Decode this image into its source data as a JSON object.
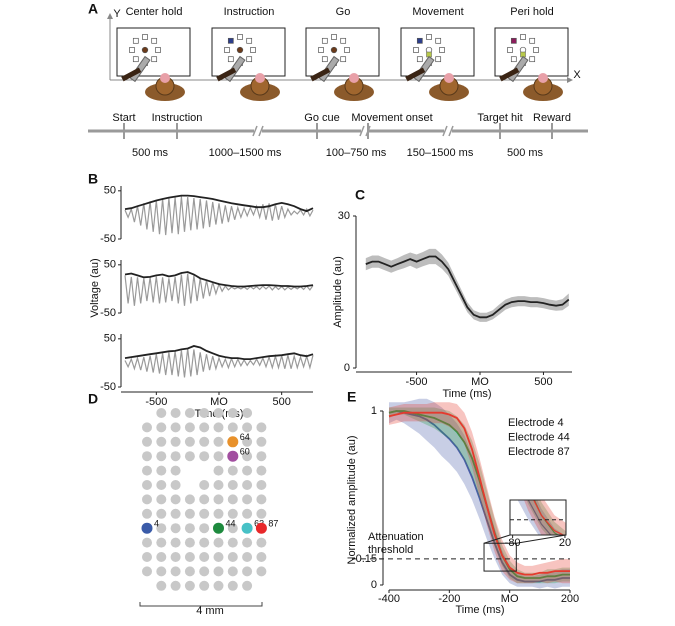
{
  "panel_a": {
    "label": "A",
    "axis_x": "X",
    "axis_y": "Y",
    "epochs": [
      "Center hold",
      "Instruction",
      "Go",
      "Movement",
      "Peri hold"
    ],
    "timeline": {
      "events": [
        "Start",
        "Instruction",
        "Go cue",
        "Movement onset",
        "Target hit",
        "Reward"
      ],
      "durations": [
        "500 ms",
        "1000–1500 ms",
        "100–750 ms",
        "150–1500 ms",
        "500 ms"
      ]
    }
  },
  "chart_data": [
    {
      "type": "line",
      "label": "B",
      "x_label": "Time (ms)",
      "y_label": "Voltage (au)",
      "xlim": [
        -750,
        750
      ],
      "xticks": [
        -500,
        {
          "value": 0,
          "label": "MO"
        },
        500
      ],
      "ylim": [
        -50,
        60
      ],
      "yticks": [
        -50,
        50
      ],
      "raw_color": "#9a9a9a",
      "envelope_color": "#222222",
      "x_raw": [
        -750,
        -725,
        -700,
        -675,
        -650,
        -625,
        -600,
        -575,
        -550,
        -525,
        -500,
        -475,
        -450,
        -425,
        -400,
        -375,
        -350,
        -325,
        -300,
        -275,
        -250,
        -225,
        -200,
        -175,
        -150,
        -125,
        -100,
        -75,
        -50,
        -25,
        0,
        25,
        50,
        75,
        100,
        125,
        150,
        175,
        200,
        225,
        250,
        275,
        300,
        325,
        350,
        375,
        400,
        425,
        450,
        475,
        500,
        525,
        550,
        575,
        600,
        625,
        650,
        675,
        700,
        725,
        750
      ],
      "x_envelope": [
        -750,
        -700,
        -650,
        -600,
        -550,
        -500,
        -450,
        -400,
        -350,
        -300,
        -250,
        -200,
        -150,
        -100,
        -50,
        0,
        50,
        100,
        150,
        200,
        250,
        300,
        350,
        400,
        450,
        500,
        550,
        600,
        650,
        700,
        750
      ],
      "subplots": [
        {
          "raw": [
            10,
            -5,
            12,
            -15,
            18,
            -22,
            24,
            -30,
            28,
            -35,
            30,
            -40,
            33,
            -42,
            35,
            -38,
            36,
            -40,
            38,
            -35,
            37,
            -32,
            35,
            -30,
            33,
            -28,
            30,
            -25,
            27,
            -20,
            24,
            -18,
            20,
            -15,
            18,
            -10,
            15,
            -5,
            14,
            -2,
            15,
            0,
            18,
            -5,
            22,
            -10,
            24,
            -12,
            22,
            -10,
            18,
            -5,
            12,
            0,
            8,
            2,
            10,
            0,
            12,
            -2,
            10
          ],
          "envelope": [
            12,
            14,
            18,
            22,
            26,
            30,
            33,
            36,
            38,
            40,
            40,
            39,
            37,
            35,
            33,
            30,
            27,
            24,
            22,
            20,
            18,
            16,
            16,
            18,
            22,
            25,
            22,
            18,
            12,
            8,
            14
          ]
        },
        {
          "raw": [
            28,
            -30,
            25,
            -35,
            24,
            -30,
            22,
            -25,
            24,
            -28,
            26,
            -30,
            24,
            -28,
            22,
            -25,
            25,
            -30,
            30,
            -35,
            32,
            -30,
            28,
            -25,
            22,
            -20,
            18,
            -15,
            14,
            -10,
            10,
            -5,
            6,
            -2,
            4,
            0,
            3,
            0,
            4,
            -1,
            5,
            0,
            5,
            -1,
            6,
            0,
            6,
            -2,
            5,
            -1,
            5,
            -2,
            4,
            -1,
            4,
            0,
            5,
            -1,
            6,
            -2,
            7
          ],
          "envelope": [
            30,
            32,
            28,
            24,
            25,
            28,
            30,
            26,
            28,
            33,
            35,
            30,
            22,
            18,
            14,
            10,
            8,
            6,
            5,
            5,
            6,
            7,
            8,
            8,
            7,
            6,
            6,
            5,
            5,
            6,
            8
          ]
        },
        {
          "raw": [
            5,
            -8,
            8,
            -12,
            10,
            -15,
            12,
            -18,
            15,
            -20,
            18,
            -22,
            20,
            -25,
            22,
            -25,
            24,
            -28,
            26,
            -30,
            30,
            -28,
            28,
            -25,
            22,
            -18,
            18,
            -15,
            14,
            -12,
            10,
            -8,
            8,
            -10,
            9,
            -8,
            8,
            -6,
            6,
            -5,
            5,
            -4,
            8,
            -5,
            10,
            -8,
            12,
            -10,
            14,
            -10,
            15,
            -12,
            16,
            -12,
            14,
            -10,
            12,
            -8,
            14,
            -10,
            16
          ],
          "envelope": [
            10,
            12,
            14,
            16,
            18,
            20,
            22,
            24,
            25,
            28,
            30,
            35,
            32,
            25,
            20,
            15,
            12,
            10,
            10,
            8,
            8,
            10,
            12,
            14,
            15,
            16,
            18,
            20,
            16,
            14,
            18
          ]
        }
      ]
    },
    {
      "type": "line",
      "label": "C",
      "x_label": "Time (ms)",
      "y_label": "Amplitude (au)",
      "xlim": [
        -930,
        725
      ],
      "xticks": [
        -500,
        {
          "value": 0,
          "label": "MO"
        },
        500
      ],
      "ylim": [
        0,
        30
      ],
      "yticks": [
        0,
        30
      ],
      "x": [
        -900,
        -850,
        -800,
        -750,
        -700,
        -650,
        -600,
        -550,
        -500,
        -450,
        -400,
        -350,
        -300,
        -250,
        -200,
        -150,
        -100,
        -50,
        0,
        50,
        100,
        150,
        200,
        250,
        300,
        350,
        400,
        450,
        500,
        550,
        600,
        650,
        700
      ],
      "series": [
        {
          "color": "#222222",
          "band_color": "#bdbdbd",
          "values": [
            20.5,
            21,
            21,
            20.5,
            20,
            20.5,
            21,
            21.5,
            21,
            21.5,
            22,
            22,
            21,
            19.5,
            17,
            14.5,
            12,
            10.5,
            10,
            10,
            10.5,
            11.5,
            12.5,
            13,
            13.2,
            13.2,
            13,
            13,
            12.8,
            12.5,
            12.3,
            12.5,
            13.5
          ],
          "error": [
            1.2,
            1.2,
            1.2,
            1.2,
            1.2,
            1.2,
            1.3,
            1.3,
            1.4,
            1.4,
            1.5,
            1.5,
            1.4,
            1.3,
            1.2,
            1.1,
            1,
            0.9,
            0.9,
            0.9,
            0.9,
            1,
            1,
            1,
            1,
            1,
            1,
            1,
            1,
            1,
            1,
            1.1,
            1.2
          ]
        }
      ]
    },
    {
      "type": "line",
      "label": "E",
      "x_label": "Time (ms)",
      "y_label": "Normalized amplitude (au)",
      "xlim": [
        -400,
        200
      ],
      "xticks": [
        -400,
        -200,
        {
          "value": 0,
          "label": "MO"
        },
        200
      ],
      "ylim": [
        0,
        1
      ],
      "yticks": [
        0,
        0.15,
        1
      ],
      "threshold": 0.15,
      "threshold_label": [
        "Attenuation",
        "threshold"
      ],
      "x": [
        -400,
        -375,
        -350,
        -325,
        -300,
        -275,
        -250,
        -225,
        -200,
        -175,
        -150,
        -125,
        -100,
        -75,
        -50,
        -25,
        0,
        25,
        50,
        75,
        100,
        125,
        150,
        175,
        200
      ],
      "series": [
        {
          "name": "Electrode 4",
          "color": "#4a5ca8",
          "values": [
            0.99,
            1.0,
            0.99,
            0.98,
            0.97,
            0.95,
            0.92,
            0.88,
            0.84,
            0.79,
            0.72,
            0.62,
            0.5,
            0.37,
            0.24,
            0.13,
            0.06,
            0.03,
            0.02,
            0.02,
            0.02,
            0.03,
            0.03,
            0.04,
            0.04
          ],
          "error": [
            0.06,
            0.05,
            0.06,
            0.08,
            0.1,
            0.12,
            0.13,
            0.14,
            0.14,
            0.14,
            0.14,
            0.13,
            0.12,
            0.11,
            0.09,
            0.07,
            0.05,
            0.04,
            0.03,
            0.03,
            0.04,
            0.04,
            0.05,
            0.05,
            0.05
          ]
        },
        {
          "name": "Electrode 44",
          "color": "#2a9a48",
          "values": [
            0.99,
            1.0,
            1.0,
            0.99,
            0.98,
            0.97,
            0.96,
            0.94,
            0.92,
            0.88,
            0.82,
            0.73,
            0.6,
            0.45,
            0.3,
            0.17,
            0.09,
            0.05,
            0.04,
            0.04,
            0.04,
            0.05,
            0.05,
            0.06,
            0.06
          ],
          "error": [
            0.03,
            0.02,
            0.02,
            0.03,
            0.04,
            0.05,
            0.06,
            0.07,
            0.08,
            0.09,
            0.1,
            0.1,
            0.1,
            0.09,
            0.08,
            0.06,
            0.05,
            0.04,
            0.03,
            0.03,
            0.03,
            0.04,
            0.04,
            0.04,
            0.04
          ]
        },
        {
          "name": "Electrode 87",
          "color": "#e53a2e",
          "values": [
            0.97,
            0.98,
            0.99,
            0.99,
            0.99,
            0.99,
            0.99,
            0.99,
            0.98,
            0.96,
            0.9,
            0.78,
            0.62,
            0.45,
            0.29,
            0.17,
            0.1,
            0.07,
            0.06,
            0.06,
            0.07,
            0.07,
            0.08,
            0.08,
            0.08
          ],
          "error": [
            0.05,
            0.05,
            0.05,
            0.05,
            0.05,
            0.05,
            0.06,
            0.06,
            0.07,
            0.08,
            0.09,
            0.1,
            0.11,
            0.11,
            0.1,
            0.09,
            0.07,
            0.06,
            0.05,
            0.05,
            0.05,
            0.06,
            0.06,
            0.07,
            0.07
          ]
        }
      ],
      "inset": {
        "xlim": [
          -85,
          22
        ],
        "ylim": [
          0.08,
          0.24
        ],
        "xticks": [
          -80,
          20
        ]
      }
    }
  ],
  "panel_d": {
    "label": "D",
    "scale_bar": "4 mm",
    "electrodes": [
      {
        "label": "64",
        "color": "#e8912b"
      },
      {
        "label": "60",
        "color": "#a24fa0"
      },
      {
        "label": "4",
        "color": "#3a5ba8"
      },
      {
        "label": "44",
        "color": "#1e8a3e"
      },
      {
        "label": "63",
        "color": "#47c1c6"
      },
      {
        "label": "87",
        "color": "#e8282a"
      }
    ]
  }
}
